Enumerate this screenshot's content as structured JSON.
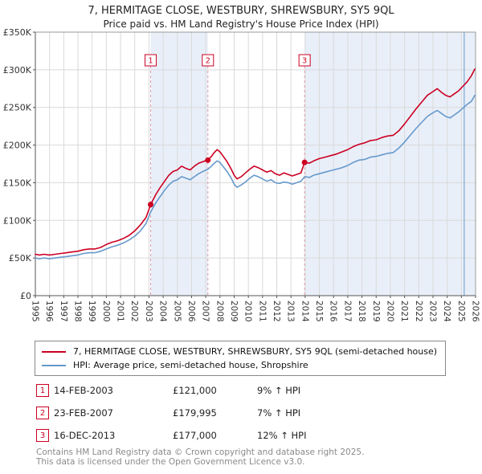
{
  "page": {
    "title_line1": "7, HERMITAGE CLOSE, WESTBURY, SHREWSBURY, SY5 9QL",
    "title_line2": "Price paid vs. HM Land Registry's House Price Index (HPI)"
  },
  "chart_data": {
    "type": "line",
    "title": "7, HERMITAGE CLOSE, WESTBURY, SHREWSBURY, SY5 9QL",
    "subtitle": "Price paid vs. HM Land Registry's House Price Index (HPI)",
    "xlim": [
      1995,
      2026
    ],
    "ylim": [
      0,
      350000
    ],
    "yticks": [
      0,
      50000,
      100000,
      150000,
      200000,
      250000,
      300000,
      350000
    ],
    "ytick_labels": [
      "£0",
      "£50K",
      "£100K",
      "£150K",
      "£200K",
      "£250K",
      "£300K",
      "£350K"
    ],
    "xtick_step": 1,
    "grid": true,
    "legend_position": "below",
    "unit": "GBP thousands",
    "colors": {
      "price": "#cc0022",
      "hpi": "#6699cc",
      "band": "#e9eff9",
      "grid": "#d9d9d9",
      "sale_line": "#dd9aa4",
      "axis": "#555555"
    },
    "bands": [
      [
        2003.12,
        2007.15
      ],
      [
        2013.96,
        2026
      ]
    ],
    "now_line": 2025.2,
    "sales": [
      {
        "n": 1,
        "x": 2003.12,
        "y": 121000
      },
      {
        "n": 2,
        "x": 2007.15,
        "y": 179995
      },
      {
        "n": 3,
        "x": 2013.96,
        "y": 177000
      }
    ],
    "series": [
      {
        "name": "7, HERMITAGE CLOSE, WESTBURY, SHREWSBURY, SY5 9QL (semi-detached house)",
        "color": "#cc0022",
        "points": [
          [
            1995.0,
            55
          ],
          [
            1995.3,
            54
          ],
          [
            1995.6,
            55
          ],
          [
            1996.0,
            54
          ],
          [
            1996.4,
            55
          ],
          [
            1996.8,
            56
          ],
          [
            1997.2,
            57
          ],
          [
            1997.6,
            58
          ],
          [
            1998.0,
            59
          ],
          [
            1998.4,
            61
          ],
          [
            1998.8,
            62
          ],
          [
            1999.2,
            62
          ],
          [
            1999.6,
            64
          ],
          [
            2000.0,
            68
          ],
          [
            2000.4,
            71
          ],
          [
            2000.8,
            73
          ],
          [
            2001.2,
            76
          ],
          [
            2001.6,
            80
          ],
          [
            2002.0,
            86
          ],
          [
            2002.4,
            94
          ],
          [
            2002.8,
            104
          ],
          [
            2003.12,
            121
          ],
          [
            2003.5,
            135
          ],
          [
            2003.8,
            144
          ],
          [
            2004.1,
            152
          ],
          [
            2004.4,
            160
          ],
          [
            2004.7,
            165
          ],
          [
            2005.0,
            167
          ],
          [
            2005.3,
            172
          ],
          [
            2005.6,
            169
          ],
          [
            2005.9,
            167
          ],
          [
            2006.2,
            172
          ],
          [
            2006.5,
            176
          ],
          [
            2006.8,
            178
          ],
          [
            2007.15,
            180
          ],
          [
            2007.4,
            185
          ],
          [
            2007.6,
            190
          ],
          [
            2007.8,
            194
          ],
          [
            2008.0,
            191
          ],
          [
            2008.2,
            186
          ],
          [
            2008.5,
            178
          ],
          [
            2008.8,
            168
          ],
          [
            2009.0,
            160
          ],
          [
            2009.2,
            155
          ],
          [
            2009.5,
            158
          ],
          [
            2009.8,
            163
          ],
          [
            2010.1,
            168
          ],
          [
            2010.4,
            172
          ],
          [
            2010.7,
            170
          ],
          [
            2011.0,
            167
          ],
          [
            2011.3,
            164
          ],
          [
            2011.6,
            166
          ],
          [
            2011.9,
            162
          ],
          [
            2012.2,
            160
          ],
          [
            2012.5,
            163
          ],
          [
            2012.8,
            161
          ],
          [
            2013.1,
            159
          ],
          [
            2013.4,
            161
          ],
          [
            2013.7,
            163
          ],
          [
            2013.96,
            177
          ],
          [
            2014.3,
            176
          ],
          [
            2014.6,
            179
          ],
          [
            2015.0,
            182
          ],
          [
            2015.4,
            184
          ],
          [
            2015.8,
            186
          ],
          [
            2016.2,
            188
          ],
          [
            2016.6,
            191
          ],
          [
            2017.0,
            194
          ],
          [
            2017.4,
            198
          ],
          [
            2017.8,
            201
          ],
          [
            2018.2,
            203
          ],
          [
            2018.6,
            206
          ],
          [
            2019.0,
            207
          ],
          [
            2019.4,
            210
          ],
          [
            2019.8,
            212
          ],
          [
            2020.2,
            213
          ],
          [
            2020.6,
            219
          ],
          [
            2021.0,
            228
          ],
          [
            2021.4,
            238
          ],
          [
            2021.8,
            248
          ],
          [
            2022.2,
            257
          ],
          [
            2022.6,
            266
          ],
          [
            2023.0,
            271
          ],
          [
            2023.3,
            275
          ],
          [
            2023.6,
            270
          ],
          [
            2023.9,
            266
          ],
          [
            2024.2,
            264
          ],
          [
            2024.5,
            268
          ],
          [
            2024.8,
            272
          ],
          [
            2025.1,
            278
          ],
          [
            2025.4,
            284
          ],
          [
            2025.7,
            292
          ],
          [
            2025.95,
            301
          ]
        ]
      },
      {
        "name": "HPI: Average price, semi-detached house, Shropshire",
        "color": "#6699cc",
        "points": [
          [
            1995.0,
            50
          ],
          [
            1995.3,
            49
          ],
          [
            1995.6,
            50
          ],
          [
            1996.0,
            49
          ],
          [
            1996.4,
            50
          ],
          [
            1996.8,
            51
          ],
          [
            1997.2,
            52
          ],
          [
            1997.6,
            53
          ],
          [
            1998.0,
            54
          ],
          [
            1998.4,
            56
          ],
          [
            1998.8,
            57
          ],
          [
            1999.2,
            57
          ],
          [
            1999.6,
            59
          ],
          [
            2000.0,
            62
          ],
          [
            2000.4,
            65
          ],
          [
            2000.8,
            67
          ],
          [
            2001.2,
            70
          ],
          [
            2001.6,
            74
          ],
          [
            2002.0,
            79
          ],
          [
            2002.4,
            86
          ],
          [
            2002.8,
            96
          ],
          [
            2003.12,
            111
          ],
          [
            2003.5,
            124
          ],
          [
            2003.8,
            132
          ],
          [
            2004.1,
            140
          ],
          [
            2004.4,
            147
          ],
          [
            2004.7,
            152
          ],
          [
            2005.0,
            154
          ],
          [
            2005.3,
            158
          ],
          [
            2005.6,
            156
          ],
          [
            2005.9,
            154
          ],
          [
            2006.2,
            158
          ],
          [
            2006.5,
            162
          ],
          [
            2006.8,
            165
          ],
          [
            2007.15,
            168
          ],
          [
            2007.4,
            172
          ],
          [
            2007.6,
            176
          ],
          [
            2007.8,
            179
          ],
          [
            2008.0,
            177
          ],
          [
            2008.2,
            172
          ],
          [
            2008.5,
            165
          ],
          [
            2008.8,
            156
          ],
          [
            2009.0,
            148
          ],
          [
            2009.2,
            144
          ],
          [
            2009.5,
            147
          ],
          [
            2009.8,
            151
          ],
          [
            2010.1,
            156
          ],
          [
            2010.4,
            160
          ],
          [
            2010.7,
            158
          ],
          [
            2011.0,
            155
          ],
          [
            2011.3,
            152
          ],
          [
            2011.6,
            154
          ],
          [
            2011.9,
            150
          ],
          [
            2012.2,
            149
          ],
          [
            2012.5,
            151
          ],
          [
            2012.8,
            150
          ],
          [
            2013.1,
            148
          ],
          [
            2013.4,
            150
          ],
          [
            2013.7,
            152
          ],
          [
            2013.96,
            158
          ],
          [
            2014.3,
            157
          ],
          [
            2014.6,
            160
          ],
          [
            2015.0,
            162
          ],
          [
            2015.4,
            164
          ],
          [
            2015.8,
            166
          ],
          [
            2016.2,
            168
          ],
          [
            2016.6,
            170
          ],
          [
            2017.0,
            173
          ],
          [
            2017.4,
            177
          ],
          [
            2017.8,
            180
          ],
          [
            2018.2,
            181
          ],
          [
            2018.6,
            184
          ],
          [
            2019.0,
            185
          ],
          [
            2019.4,
            187
          ],
          [
            2019.8,
            189
          ],
          [
            2020.2,
            190
          ],
          [
            2020.6,
            196
          ],
          [
            2021.0,
            204
          ],
          [
            2021.4,
            213
          ],
          [
            2021.8,
            222
          ],
          [
            2022.2,
            230
          ],
          [
            2022.6,
            238
          ],
          [
            2023.0,
            243
          ],
          [
            2023.3,
            246
          ],
          [
            2023.6,
            242
          ],
          [
            2023.9,
            238
          ],
          [
            2024.2,
            236
          ],
          [
            2024.5,
            240
          ],
          [
            2024.8,
            244
          ],
          [
            2025.1,
            249
          ],
          [
            2025.4,
            254
          ],
          [
            2025.7,
            258
          ],
          [
            2025.95,
            266
          ]
        ]
      }
    ]
  },
  "legend": {
    "price_label": "7, HERMITAGE CLOSE, WESTBURY, SHREWSBURY, SY5 9QL (semi-detached house)",
    "hpi_label": "HPI: Average price, semi-detached house, Shropshire"
  },
  "transactions": [
    {
      "n": "1",
      "date": "14-FEB-2003",
      "price": "£121,000",
      "hpi": "9% ↑ HPI"
    },
    {
      "n": "2",
      "date": "23-FEB-2007",
      "price": "£179,995",
      "hpi": "7% ↑ HPI"
    },
    {
      "n": "3",
      "date": "16-DEC-2013",
      "price": "£177,000",
      "hpi": "12% ↑ HPI"
    }
  ],
  "footer": {
    "line1": "Contains HM Land Registry data © Crown copyright and database right 2025.",
    "line2": "This data is licensed under the Open Government Licence v3.0."
  }
}
